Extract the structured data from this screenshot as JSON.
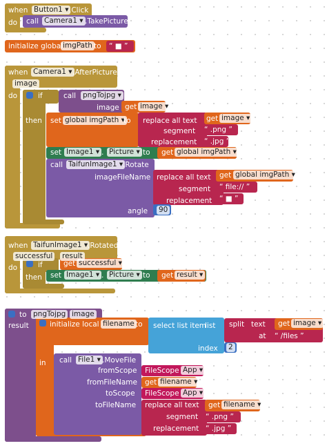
{
  "blocks": [
    {
      "texts": [
        "when",
        "Button1 ▾",
        ".Click",
        "do",
        "call",
        "Camera1 ▾",
        ".TakePicture"
      ]
    },
    {
      "texts": [
        "initialize global",
        "imgPath",
        "to",
        "“ ■ ”"
      ]
    },
    {
      "texts": [
        "when",
        "Camera1 ▾",
        ".AfterPicture",
        "image",
        "do",
        "if",
        "then",
        "call",
        "pngTojpg ▾",
        "image",
        "get",
        "image ▾",
        "set",
        "global imgPath ▾",
        "to",
        "replace all text",
        "get",
        "image ▾",
        "segment",
        "“ .png ”",
        "replacement",
        "“ .jpg ”",
        "set",
        "Image1 ▾",
        ".",
        "Picture ▾",
        "to",
        "get",
        "global imgPath ▾",
        "call",
        "TaifunImage1 ▾",
        ".Rotate",
        "imageFileName",
        "replace all text",
        "get",
        "global imgPath ▾",
        "segment",
        "“ file:// ”",
        "replacement",
        "“ ■ ”",
        "angle",
        "90"
      ]
    },
    {
      "texts": [
        "when",
        "TaifunImage1 ▾",
        ".Rotated",
        "successful",
        "result",
        "do",
        "if",
        "get",
        "successful ▾",
        "then",
        "set",
        "Image1 ▾",
        ".",
        "Picture ▾",
        "to",
        "get",
        "result ▾"
      ]
    },
    {
      "texts": [
        "to",
        "pngTojpg",
        "image",
        "result",
        "initialize local",
        "filename",
        "to",
        "select list item",
        "list",
        "split",
        "text",
        "get",
        "image ▾",
        "at",
        "“ /files ”",
        "index",
        "2",
        "in",
        "call",
        "File1 ▾",
        ".MoveFile",
        "fromScope",
        "FileScope",
        "App ▾",
        "fromFileName",
        "get",
        "filename ▾",
        "toScope",
        "FileScope",
        "App ▾",
        "toFileName",
        "replace all text",
        "get",
        "filename ▾",
        "segment",
        "“ .png ”",
        "replacement",
        "“ .jpg ”"
      ]
    }
  ]
}
